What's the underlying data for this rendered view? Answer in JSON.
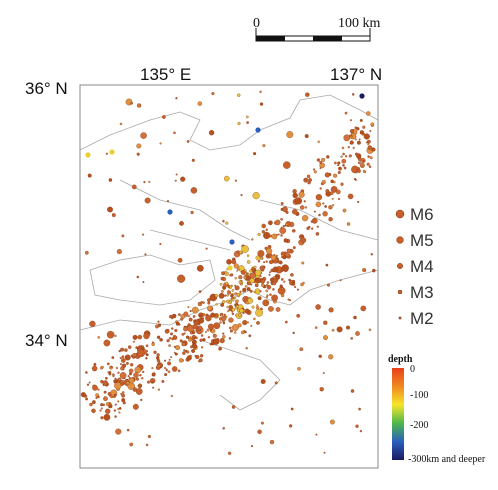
{
  "scale": {
    "start": "0",
    "end": "100 km"
  },
  "labels": {
    "lat_top": "36° N",
    "lon_mid": "135° E",
    "lon_right": "137° N",
    "lat_bottom": "34° N"
  },
  "magnitude_legend": [
    "M6",
    "M5",
    "M4",
    "M3",
    "M2"
  ],
  "depth_legend": {
    "title": "depth",
    "ticks": [
      "0",
      "-100",
      "-200",
      "-300km and deeper"
    ]
  }
}
